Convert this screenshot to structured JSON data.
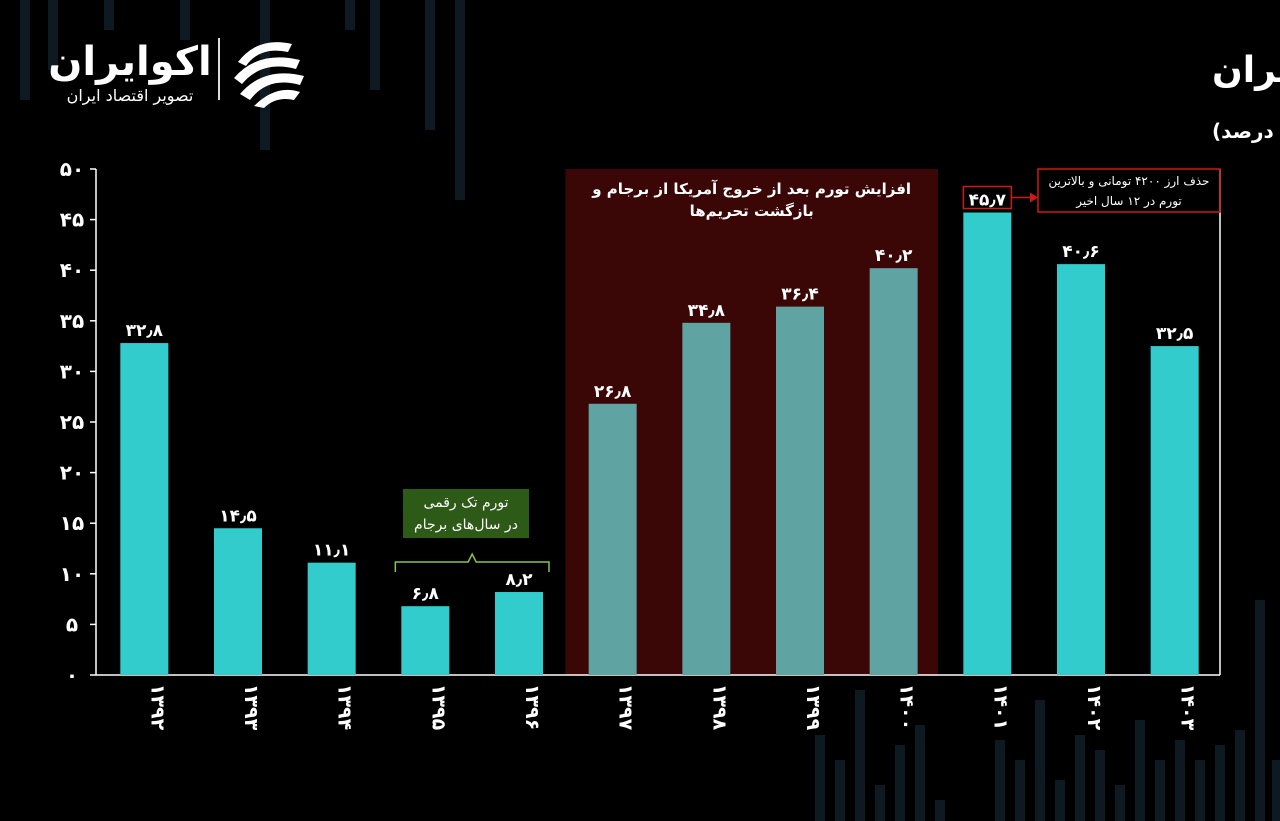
{
  "brand": {
    "name": "اکوایران",
    "tagline": "تصویر اقتصاد ایران"
  },
  "colors": {
    "bar_primary": "#33CCCC",
    "bar_muted": "#5FA3A3",
    "highlight_region": "#3A0606",
    "annotation_red": "#D01818",
    "annotation_green_bg": "#2D5A17",
    "annotation_green_line": "#8BC34A",
    "axis": "#FFFFFF",
    "text": "#FFFFFF"
  },
  "chart_data": {
    "type": "bar",
    "title": "روند تورم سالانه در اقتصاد ایران",
    "subtitle": "(منبع : مرکز آمار) (واحد: درصد)",
    "xlabel": "",
    "ylabel": "",
    "ylim": [
      0,
      50
    ],
    "grid": false,
    "y_ticks": [
      0,
      5,
      10,
      15,
      20,
      25,
      30,
      35,
      40,
      45,
      50
    ],
    "y_tick_labels": [
      "۰",
      "۵",
      "۱۰",
      "۱۵",
      "۲۰",
      "۲۵",
      "۳۰",
      "۳۵",
      "۴۰",
      "۴۵",
      "۵۰"
    ],
    "categories": [
      "۱۳۹۲",
      "۱۳۹۳",
      "۱۳۹۴",
      "۱۳۹۵",
      "۱۳۹۶",
      "۱۳۹۷",
      "۱۳۹۸",
      "۱۳۹۹",
      "۱۴۰۰",
      "۱۴۰۱",
      "۱۴۰۲",
      "۱۴۰۳"
    ],
    "values": [
      32.8,
      14.5,
      11.1,
      6.8,
      8.2,
      26.8,
      34.8,
      36.4,
      40.2,
      45.7,
      40.6,
      32.5
    ],
    "value_labels": [
      "۳۲٫۸",
      "۱۴٫۵",
      "۱۱٫۱",
      "۶٫۸",
      "۸٫۲",
      "۲۶٫۸",
      "۳۴٫۸",
      "۳۶٫۴",
      "۴۰٫۲",
      "۴۵٫۷",
      "۴۰٫۶",
      "۳۲٫۵"
    ],
    "muted_indices": [
      5,
      6,
      7,
      8
    ],
    "annotations": {
      "sanctions": {
        "text_line1": "افزایش تورم بعد از خروج آمریکا از برجام و",
        "text_line2": "بازگشت تحریم‌ها",
        "from_index": 5,
        "to_index": 8
      },
      "single_digit": {
        "text_line1": "تورم تک رقمی",
        "text_line2": "در سال‌های برجام",
        "from_index": 3,
        "to_index": 4
      },
      "record": {
        "text_line1": "حذف ارز ۴۲۰۰ تومانی و بالاترین",
        "text_line2": "تورم در ۱۲ سال اخیر",
        "index": 9
      }
    }
  }
}
